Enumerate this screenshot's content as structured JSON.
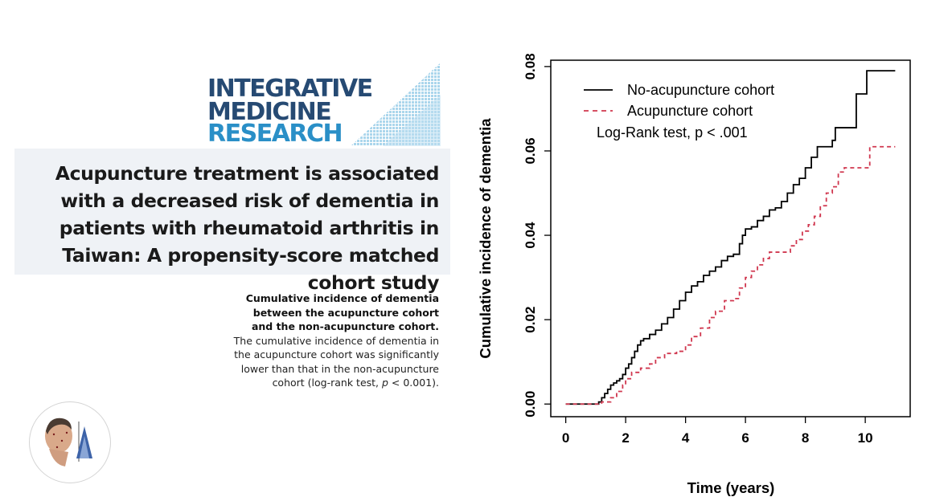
{
  "journal": {
    "logo_lines": [
      "INTEGRATIVE",
      "MEDICINE",
      "RESEARCH"
    ]
  },
  "article": {
    "title": "Acupuncture treatment is associated with a decreased risk of dementia in patients with rheumatoid arthritis in Taiwan: A propensity-score matched cohort study"
  },
  "caption": {
    "bold": "Cumulative incidence of dementia between the acupuncture cohort and the non-acupuncture cohort.",
    "text_before_p": " The cumulative incidence of dementia in the acupuncture cohort was significantly lower than that in the non-acupuncture cohort (log-rank test, ",
    "p_symbol": "p",
    "text_after_p": " < 0.001)."
  },
  "chart_data": {
    "type": "line",
    "xlabel": "Time (years)",
    "ylabel": "Cumulative incidence of dementia",
    "xlim": [
      -0.5,
      11.5
    ],
    "ylim": [
      -0.003,
      0.0815
    ],
    "x_ticks": [
      0,
      2,
      4,
      6,
      8,
      10
    ],
    "y_ticks": [
      0.0,
      0.02,
      0.04,
      0.06,
      0.08
    ],
    "x_tick_labels": [
      "0",
      "2",
      "4",
      "6",
      "8",
      "10"
    ],
    "y_tick_labels": [
      "0.00",
      "0.02",
      "0.04",
      "0.06",
      "0.08"
    ],
    "grid": false,
    "legend_position": "top-left",
    "annotation": "Log-Rank test, p < .001",
    "series": [
      {
        "name": "No-acupuncture cohort",
        "color": "#000000",
        "dash": "solid",
        "step_points": [
          [
            0,
            0
          ],
          [
            1.0,
            0
          ],
          [
            1.1,
            0.0005
          ],
          [
            1.2,
            0.0015
          ],
          [
            1.3,
            0.0025
          ],
          [
            1.4,
            0.0035
          ],
          [
            1.5,
            0.0045
          ],
          [
            1.6,
            0.005
          ],
          [
            1.7,
            0.0055
          ],
          [
            1.8,
            0.006
          ],
          [
            1.9,
            0.007
          ],
          [
            2.0,
            0.0085
          ],
          [
            2.1,
            0.0095
          ],
          [
            2.2,
            0.011
          ],
          [
            2.3,
            0.0125
          ],
          [
            2.4,
            0.014
          ],
          [
            2.5,
            0.015
          ],
          [
            2.6,
            0.0155
          ],
          [
            2.8,
            0.0165
          ],
          [
            3.0,
            0.0175
          ],
          [
            3.2,
            0.019
          ],
          [
            3.4,
            0.0205
          ],
          [
            3.6,
            0.0225
          ],
          [
            3.8,
            0.0245
          ],
          [
            4.0,
            0.0265
          ],
          [
            4.2,
            0.028
          ],
          [
            4.4,
            0.029
          ],
          [
            4.6,
            0.0305
          ],
          [
            4.8,
            0.0315
          ],
          [
            5.0,
            0.0325
          ],
          [
            5.2,
            0.034
          ],
          [
            5.4,
            0.035
          ],
          [
            5.6,
            0.0355
          ],
          [
            5.8,
            0.038
          ],
          [
            5.9,
            0.04
          ],
          [
            6.0,
            0.0415
          ],
          [
            6.2,
            0.042
          ],
          [
            6.4,
            0.0435
          ],
          [
            6.6,
            0.0445
          ],
          [
            6.8,
            0.046
          ],
          [
            7.0,
            0.0465
          ],
          [
            7.2,
            0.048
          ],
          [
            7.4,
            0.05
          ],
          [
            7.6,
            0.052
          ],
          [
            7.8,
            0.0535
          ],
          [
            8.0,
            0.056
          ],
          [
            8.2,
            0.0585
          ],
          [
            8.4,
            0.061
          ],
          [
            8.6,
            0.061
          ],
          [
            8.9,
            0.0625
          ],
          [
            9.0,
            0.0655
          ],
          [
            9.5,
            0.0655
          ],
          [
            9.7,
            0.0735
          ],
          [
            10.0,
            0.0735
          ],
          [
            10.05,
            0.079
          ],
          [
            11.0,
            0.079
          ]
        ]
      },
      {
        "name": "Acupuncture cohort",
        "color": "#d0374f",
        "dash": "dashed",
        "step_points": [
          [
            0,
            0
          ],
          [
            1.1,
            0
          ],
          [
            1.2,
            0.0005
          ],
          [
            1.5,
            0.0015
          ],
          [
            1.7,
            0.003
          ],
          [
            1.9,
            0.0045
          ],
          [
            2.0,
            0.006
          ],
          [
            2.2,
            0.0075
          ],
          [
            2.5,
            0.0085
          ],
          [
            2.8,
            0.0095
          ],
          [
            3.0,
            0.011
          ],
          [
            3.3,
            0.012
          ],
          [
            3.7,
            0.0125
          ],
          [
            4.0,
            0.014
          ],
          [
            4.2,
            0.016
          ],
          [
            4.5,
            0.018
          ],
          [
            4.8,
            0.0205
          ],
          [
            5.0,
            0.022
          ],
          [
            5.3,
            0.0245
          ],
          [
            5.6,
            0.025
          ],
          [
            5.8,
            0.0275
          ],
          [
            6.0,
            0.03
          ],
          [
            6.2,
            0.0315
          ],
          [
            6.4,
            0.033
          ],
          [
            6.6,
            0.0345
          ],
          [
            6.8,
            0.036
          ],
          [
            7.5,
            0.0375
          ],
          [
            7.7,
            0.039
          ],
          [
            7.9,
            0.041
          ],
          [
            8.1,
            0.0425
          ],
          [
            8.3,
            0.0445
          ],
          [
            8.5,
            0.047
          ],
          [
            8.7,
            0.05
          ],
          [
            8.9,
            0.0515
          ],
          [
            9.1,
            0.055
          ],
          [
            9.3,
            0.056
          ],
          [
            10.1,
            0.056
          ],
          [
            10.15,
            0.061
          ],
          [
            11.0,
            0.061
          ]
        ]
      }
    ]
  }
}
